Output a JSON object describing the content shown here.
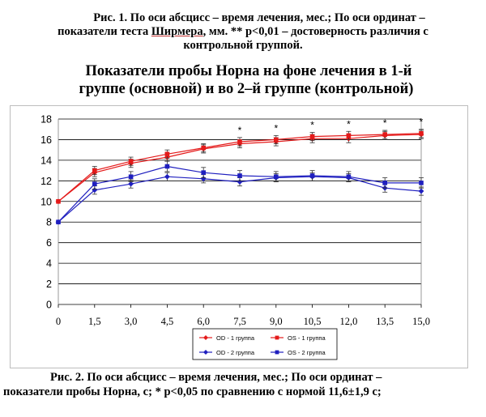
{
  "caption_top": {
    "line1": "Рис. 1. По оси абсцисс – время лечения, мес.; По оси ординат –",
    "line2_pre": "показатели теста ",
    "line2_name": "Ширмера",
    "line2_post": ", мм. ** p<0,01 – достоверность различия с",
    "line3": "контрольной группой."
  },
  "chart_title": {
    "line1": "Показатели пробы Норна на фоне лечения в 1-й",
    "line2": "группе (основной) и во 2–й группе (контрольной)"
  },
  "caption_bottom": {
    "line1": "Рис. 2. По оси абсцисс – время лечения, мес.; По оси ординат –",
    "line2": "показатели пробы Норна, с; * p<0,05 по сравнению с нормой 11,6±1,9 с;"
  },
  "colors": {
    "red": "#e41a1a",
    "blue": "#1f1fbf",
    "grid": "#000000",
    "errorbar": "#333333"
  },
  "chart_data": {
    "type": "line",
    "x_tick_labels": [
      "0",
      "1,5",
      "3,0",
      "4,5",
      "6,0",
      "7,5",
      "9,0",
      "10,5",
      "12,0",
      "13,5",
      "15,0"
    ],
    "y_tick_labels": [
      "0",
      "2",
      "4",
      "6",
      "8",
      "10",
      "12",
      "14",
      "16",
      "18"
    ],
    "x": [
      0,
      1.5,
      3.0,
      4.5,
      6.0,
      7.5,
      9.0,
      10.5,
      12.0,
      13.5,
      15.0
    ],
    "ylim": [
      0,
      18
    ],
    "grid": true,
    "legend_position": "bottom-right",
    "series": [
      {
        "name": "OD - 1 группа",
        "color": "#e41a1a",
        "marker": "diamond",
        "values": [
          10.0,
          12.8,
          13.7,
          14.3,
          15.1,
          15.6,
          15.8,
          16.1,
          16.1,
          16.4,
          16.5
        ],
        "error": 0.4
      },
      {
        "name": "OS - 1 группа",
        "color": "#e41a1a",
        "marker": "square",
        "values": [
          10.0,
          13.0,
          13.9,
          14.6,
          15.2,
          15.8,
          16.0,
          16.3,
          16.4,
          16.5,
          16.6
        ],
        "error": 0.4
      },
      {
        "name": "OD - 2 группа",
        "color": "#1f1fbf",
        "marker": "diamond",
        "values": [
          8.0,
          11.1,
          11.7,
          12.4,
          12.2,
          11.9,
          12.3,
          12.4,
          12.3,
          11.3,
          11.0
        ],
        "error": 0.4
      },
      {
        "name": "OS - 2 группа",
        "color": "#1f1fbf",
        "marker": "square",
        "values": [
          8.0,
          11.7,
          12.4,
          13.4,
          12.8,
          12.5,
          12.4,
          12.5,
          12.4,
          11.8,
          11.8
        ],
        "error": 0.5
      }
    ],
    "significance_markers": [
      {
        "x": 7.5,
        "label": "*"
      },
      {
        "x": 9.0,
        "label": "*"
      },
      {
        "x": 10.5,
        "label": "*"
      },
      {
        "x": 12.0,
        "label": "*"
      },
      {
        "x": 13.5,
        "label": "*"
      },
      {
        "x": 15.0,
        "label": "*"
      }
    ]
  }
}
